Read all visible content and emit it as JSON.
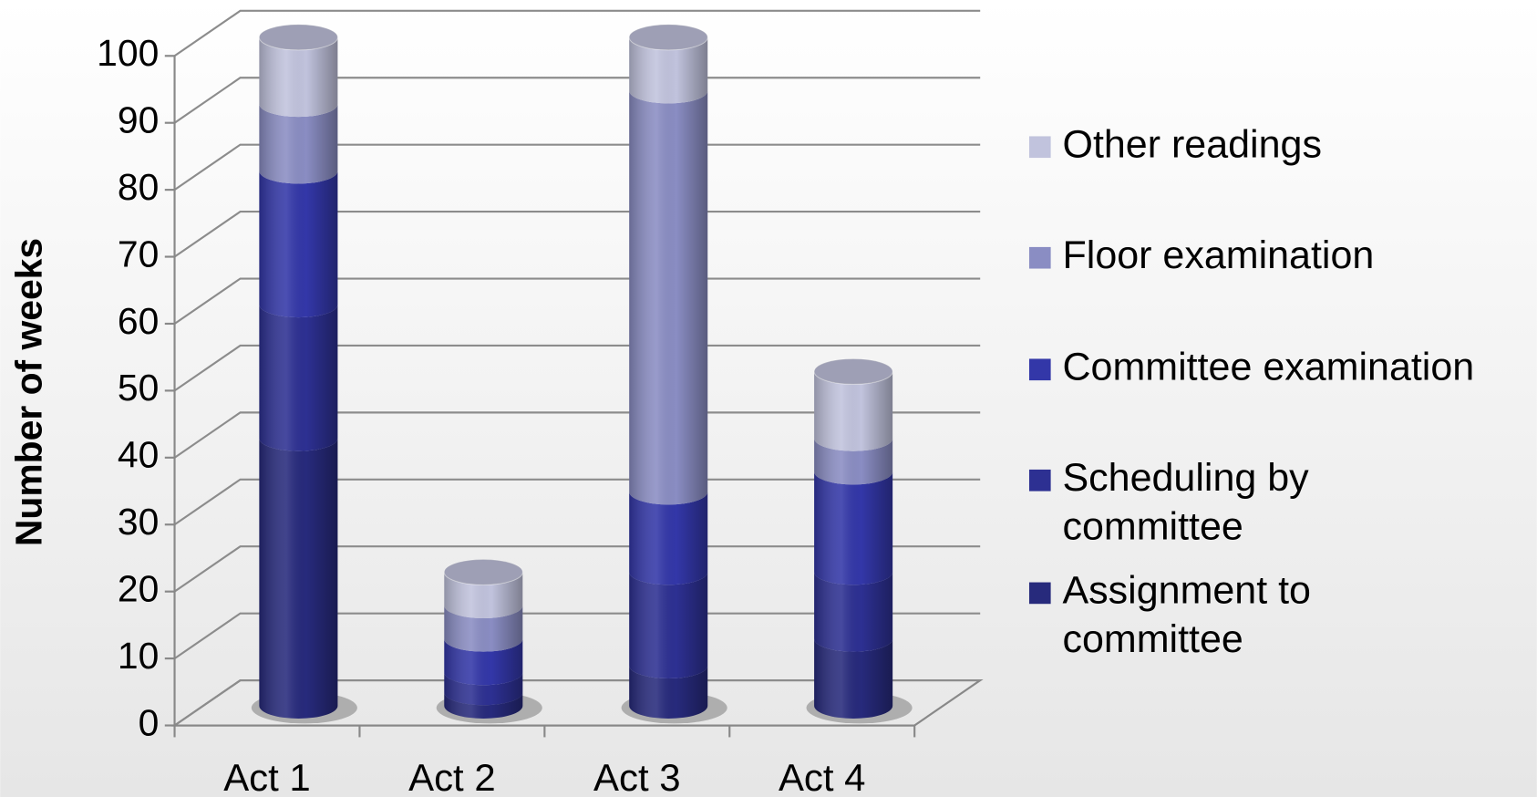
{
  "chart_data": {
    "type": "bar3d_stacked",
    "ylabel": "Number of weeks",
    "categories": [
      "Act 1",
      "Act 2",
      "Act 3",
      "Act 4"
    ],
    "series": [
      {
        "name": "Assignment to committee",
        "color": "#272a7c",
        "values": [
          40,
          2,
          6,
          10
        ]
      },
      {
        "name": "Scheduling by committee",
        "color": "#2d3092",
        "values": [
          20,
          3,
          14,
          10
        ]
      },
      {
        "name": "Committee examination",
        "color": "#3337a8",
        "values": [
          20,
          5,
          12,
          15
        ]
      },
      {
        "name": "Floor examination",
        "color": "#8a8dc3",
        "values": [
          10,
          5,
          60,
          5
        ]
      },
      {
        "name": "Other readings",
        "color": "#c1c3dd",
        "values": [
          10,
          5,
          8,
          10
        ]
      }
    ],
    "ylim": [
      0,
      100
    ],
    "yticks": [
      0,
      10,
      20,
      30,
      40,
      50,
      60,
      70,
      80,
      90,
      100
    ],
    "grid": true,
    "legend": "right"
  }
}
